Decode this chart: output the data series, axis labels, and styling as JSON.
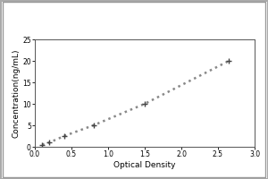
{
  "x_data": [
    0.1,
    0.2,
    0.4,
    0.8,
    1.5,
    2.65
  ],
  "y_data": [
    0.5,
    1.0,
    2.5,
    5.0,
    10.0,
    20.0
  ],
  "xlabel": "Optical Density",
  "ylabel": "Concentration(ng/mL)",
  "xlim": [
    0,
    3
  ],
  "ylim": [
    0,
    25
  ],
  "xticks": [
    0,
    0.5,
    1,
    1.5,
    2,
    2.5,
    3
  ],
  "yticks": [
    0,
    5,
    10,
    15,
    20,
    25
  ],
  "line_color": "#888888",
  "marker": "+",
  "marker_size": 5,
  "marker_color": "#444444",
  "line_style": "dotted",
  "line_width": 1.8,
  "background_color": "#ffffff",
  "tick_fontsize": 5.5,
  "label_fontsize": 6.5,
  "outer_border_color": "#aaaaaa"
}
